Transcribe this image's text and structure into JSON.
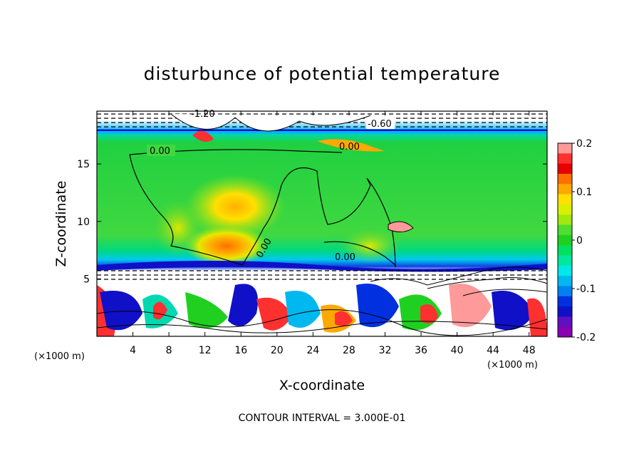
{
  "figure": {
    "title": "disturbunce of potential temperature",
    "footnote": "CONTOUR INTERVAL = 3.000E-01",
    "x_unit_left": "(×1000 m)",
    "x_unit_right": "(×1000 m)"
  },
  "chart_data": {
    "type": "heatmap",
    "title": "disturbunce of potential temperature",
    "xlabel": "X-coordinate",
    "ylabel": "Z-coordinate",
    "x_unit": "(×1000 m)",
    "xlim": [
      0,
      50
    ],
    "ylim": [
      0,
      19.6
    ],
    "x_ticks": [
      4,
      8,
      12,
      16,
      20,
      24,
      28,
      32,
      36,
      40,
      44,
      48
    ],
    "y_ticks": [
      5,
      10,
      15
    ],
    "colorbar": {
      "range": [
        -0.2,
        0.2
      ],
      "ticks": [
        0.2,
        0.1,
        0,
        -0.1,
        -0.2
      ],
      "tick_labels": [
        "0.2",
        "0.1",
        "0",
        "-0.1",
        "-0.2"
      ],
      "colors": [
        "#ff9a9a",
        "#ff3030",
        "#e60000",
        "#ff7000",
        "#ffa800",
        "#ffe000",
        "#d8f000",
        "#a0e810",
        "#50dc30",
        "#20d020",
        "#00e060",
        "#00e8a0",
        "#00e8e8",
        "#00b8f0",
        "#0080f0",
        "#0030e0",
        "#1010c8",
        "#6010c0",
        "#8800b0"
      ]
    },
    "contour_interval": "3.000E-01",
    "contour_labels": [
      {
        "text": "0.00",
        "x": 4.5,
        "z": 16.4
      },
      {
        "text": "0.00",
        "x": 17.5,
        "z": 8.0
      },
      {
        "text": "0.00",
        "x": 26.5,
        "z": 7.3
      },
      {
        "text": "0.00",
        "x": 28.5,
        "z": 17.0
      },
      {
        "text": "-0.60",
        "x": 30.0,
        "z": 18.7
      },
      {
        "text": "-1.20",
        "x": 12.5,
        "z": 19.3
      }
    ],
    "features": {
      "tropopause_z": 17.0,
      "inversion_z": 5.8,
      "warm_core": {
        "x": 14.5,
        "z": 8.0,
        "value": 0.12
      },
      "upper_warm_core": {
        "x": 16,
        "z": 11,
        "value": 0.09
      },
      "secondary_warm_core": {
        "x": 30,
        "z": 8,
        "value": 0.07
      }
    }
  }
}
